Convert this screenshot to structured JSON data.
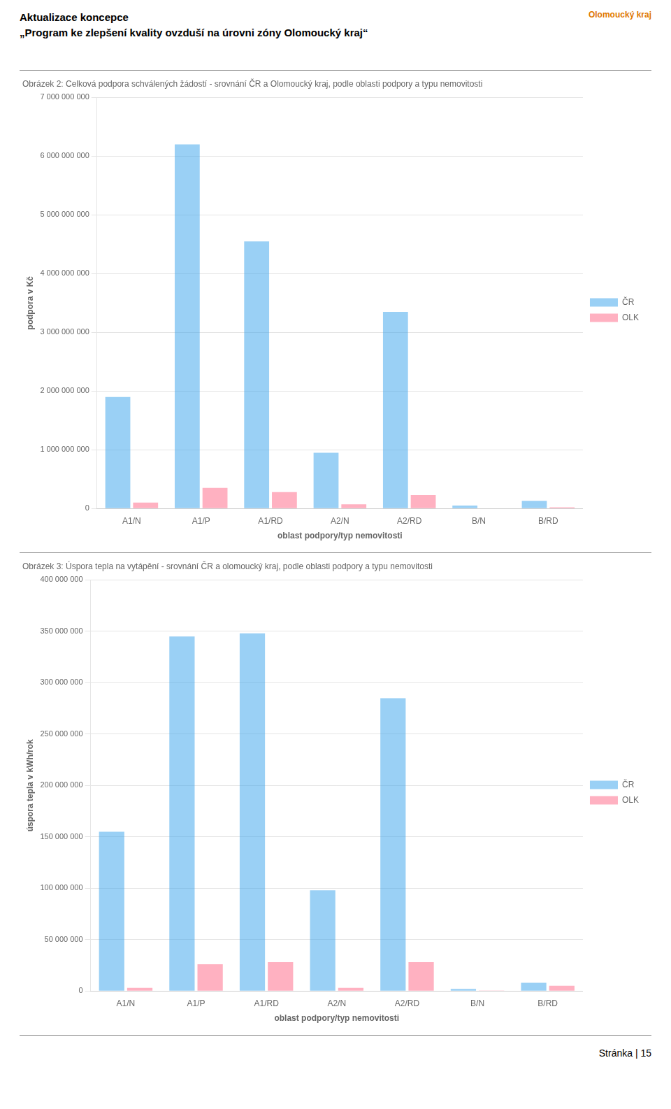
{
  "title": "Aktualizace koncepce",
  "subtitle": "„Program ke zlepšení kvality ovzduší na úrovni zóny Olomoucký kraj“",
  "annotations": [
    {
      "text": "Olomoucký kraj",
      "color": "#e07800"
    },
    {
      "text": "Stránka | 15"
    }
  ],
  "chart_data": [
    {
      "type": "bar",
      "title": "Obrázek 2: Celková podpora schválených žádostí - srovnání ČR a Olomoucký kraj, podle oblasti podpory a typu nemovitosti",
      "xlabel": "oblast podpory/typ nemovitosti",
      "ylabel": "podpora v Kč",
      "categories": [
        "A1/N",
        "A1/P",
        "A1/RD",
        "A2/N",
        "A2/RD",
        "B/N",
        "B/RD"
      ],
      "series": [
        {
          "name": "ČR",
          "values": [
            1900000000,
            6200000000,
            4550000000,
            950000000,
            3350000000,
            50000000,
            130000000
          ]
        },
        {
          "name": "OLK",
          "values": [
            100000000,
            350000000,
            280000000,
            70000000,
            230000000,
            0,
            20000000
          ]
        }
      ],
      "ylim": [
        0,
        7000000000
      ],
      "yticks": [
        0,
        {
          "value": 1000000000,
          "label": "1 000 000 000"
        },
        {
          "value": 2000000000,
          "label": "2 000 000 000"
        },
        {
          "value": 3000000000,
          "label": "3 000 000 000"
        },
        {
          "value": 4000000000,
          "label": "4 000 000 000"
        },
        {
          "value": 5000000000,
          "label": "5 000 000 000"
        },
        {
          "value": 6000000000,
          "label": "6 000 000 000"
        },
        {
          "value": 7000000000,
          "label": "7 000 000 000"
        }
      ],
      "grid": true,
      "legend": "right"
    },
    {
      "type": "bar",
      "title": "Obrázek 3: Úspora tepla na vytápění - srovnání ČR a olomoucký kraj, podle oblasti podpory a typu nemovitosti",
      "xlabel": "oblast podpory/typ nemovitosti",
      "ylabel": "úspora tepla v kWh/rok",
      "categories": [
        "A1/N",
        "A1/P",
        "A1/RD",
        "A2/N",
        "A2/RD",
        "B/N",
        "B/RD"
      ],
      "series": [
        {
          "name": "ČR",
          "values": [
            155000000,
            345000000,
            348000000,
            98000000,
            285000000,
            2000000,
            8000000
          ]
        },
        {
          "name": "OLK",
          "values": [
            3000000,
            26000000,
            28000000,
            3000000,
            28000000,
            500000,
            5000000
          ]
        }
      ],
      "ylim": [
        0,
        400000000
      ],
      "yticks": [
        0,
        {
          "value": 50000000,
          "label": "50 000 000"
        },
        {
          "value": 100000000,
          "label": "100 000 000"
        },
        {
          "value": 150000000,
          "label": "150 000 000"
        },
        {
          "value": 200000000,
          "label": "200 000 000"
        },
        {
          "value": 250000000,
          "label": "250 000 000"
        },
        {
          "value": 300000000,
          "label": "300 000 000"
        },
        {
          "value": 350000000,
          "label": "350 000 000"
        },
        {
          "value": 400000000,
          "label": "400 000 000"
        }
      ],
      "grid": true,
      "legend": "right"
    }
  ]
}
